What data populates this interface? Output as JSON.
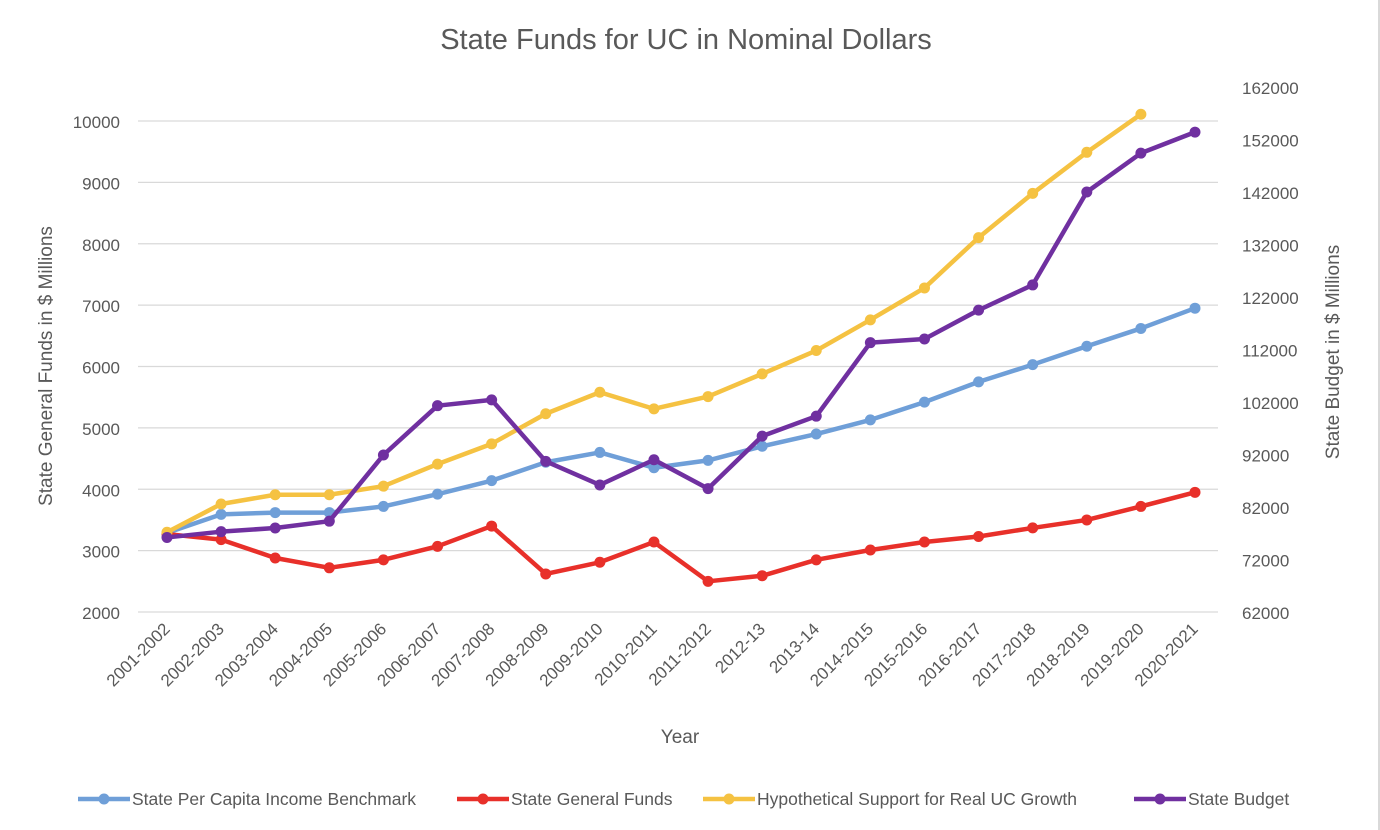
{
  "chart_data": {
    "type": "line",
    "title": "State Funds for UC in Nominal Dollars",
    "xlabel": "Year",
    "ylabel": "State General Funds in $ Millions",
    "y2label": "State Budget in $ Millions",
    "categories": [
      "2001-2002",
      "2002-2003",
      "2003-2004",
      "2004-2005",
      "2005-2006",
      "2006-2007",
      "2007-2008",
      "2008-2009",
      "2009-2010",
      "2010-2011",
      "2011-2012",
      "2012-13",
      "2013-14",
      "2014-2015",
      "2015-2016",
      "2016-2017",
      "2017-2018",
      "2018-2019",
      "2019-2020",
      "2020-2021"
    ],
    "ylim": [
      2000,
      10000
    ],
    "y_ticks": [
      "2000",
      "3000",
      "4000",
      "5000",
      "6000",
      "7000",
      "8000",
      "9000",
      "10000"
    ],
    "y2lim": [
      62000,
      162000
    ],
    "y2_ticks": [
      "62000",
      "72000",
      "82000",
      "92000",
      "102000",
      "112000",
      "122000",
      "132000",
      "142000",
      "152000",
      "162000"
    ],
    "grid": true,
    "legend_position": "bottom",
    "series": [
      {
        "name": "State Per Capita Income Benchmark",
        "axis": "left",
        "color": "#6f9fd8",
        "values": [
          3290,
          3590,
          3620,
          3620,
          3720,
          3920,
          4140,
          4440,
          4600,
          4350,
          4470,
          4700,
          4900,
          5130,
          5420,
          5750,
          6030,
          6330,
          6620,
          6950
        ]
      },
      {
        "name": "State General Funds",
        "axis": "left",
        "color": "#e8302a",
        "values": [
          3270,
          3180,
          2880,
          2720,
          2850,
          3070,
          3400,
          2620,
          2810,
          3140,
          2500,
          2590,
          2850,
          3010,
          3140,
          3230,
          3370,
          3500,
          3720,
          3950
        ]
      },
      {
        "name": "Hypothetical Support for Real UC Growth",
        "axis": "left",
        "color": "#f5c242",
        "values": [
          3300,
          3760,
          3910,
          3910,
          4050,
          4410,
          4740,
          5230,
          5580,
          5310,
          5510,
          5880,
          6260,
          6760,
          7280,
          8100,
          8820,
          9490,
          10110,
          null
        ]
      },
      {
        "name": "State Budget",
        "axis": "right",
        "color": "#7030a0",
        "values": [
          76200,
          77300,
          78000,
          79300,
          91900,
          101300,
          102400,
          90700,
          86200,
          91000,
          85500,
          95500,
          99300,
          113300,
          114000,
          119500,
          124300,
          142000,
          149400,
          153400
        ]
      }
    ]
  }
}
